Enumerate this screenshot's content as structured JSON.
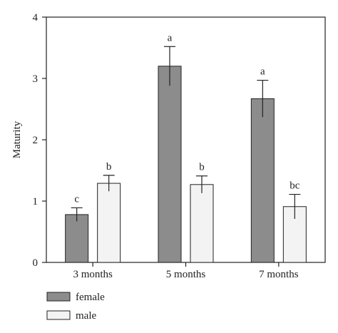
{
  "chart_data": {
    "type": "bar",
    "title": "",
    "xlabel": "",
    "ylabel": "Maturity",
    "ylim": [
      0,
      4
    ],
    "yticks": [
      0,
      1,
      2,
      3,
      4
    ],
    "grid": false,
    "legend_position": "bottom-left",
    "categories": [
      "3 months",
      "5 months",
      "7 months"
    ],
    "series": [
      {
        "name": "female",
        "color": "#8c8c8c",
        "values": [
          0.78,
          3.2,
          2.67
        ],
        "errors": [
          0.11,
          0.32,
          0.3
        ],
        "labels": [
          "c",
          "a",
          "a"
        ]
      },
      {
        "name": "male",
        "color": "#f3f3f3",
        "values": [
          1.29,
          1.27,
          0.91
        ],
        "errors": [
          0.13,
          0.14,
          0.2
        ],
        "labels": [
          "b",
          "b",
          "bc"
        ]
      }
    ]
  }
}
